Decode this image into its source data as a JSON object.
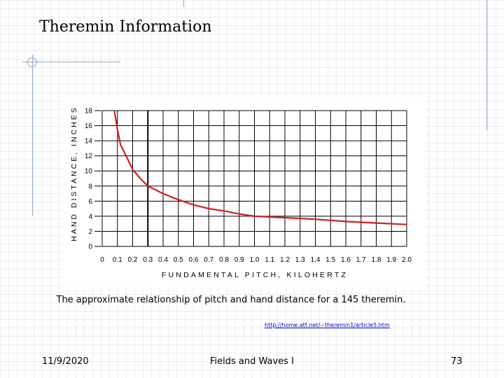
{
  "slide": {
    "title": "Theremin Information",
    "caption": "The approximate relationship of pitch and hand distance for a 145 theremin.",
    "source_link": "http://home.att.net/~theremin1/article5.htm",
    "footer": {
      "date": "11/9/2020",
      "center": "Fields and Waves I",
      "page_number": "73"
    }
  },
  "colors": {
    "curve": "#cc2222",
    "grid": "#000000",
    "decoration": "#8fa8c8",
    "link": "#0000cc"
  },
  "chart_data": {
    "type": "line",
    "title": "",
    "xlabel": "FUNDAMENTAL PITCH, KILOHERTZ",
    "ylabel": "HAND DISTANCE, INCHES",
    "xlim": [
      0,
      2.0
    ],
    "ylim": [
      0,
      18
    ],
    "x_ticks": [
      "0",
      "0.1",
      "0.2",
      "0.3",
      "0.4",
      "0.5",
      "0.6",
      "0.7",
      "0.8",
      "0.9",
      "1.0",
      "1.1",
      "1.2",
      "1.3",
      "1.4",
      "1.5",
      "1.6",
      "1.7",
      "1.8",
      "1.9",
      "2.0"
    ],
    "y_ticks": [
      "0",
      "2",
      "4",
      "6",
      "8",
      "10",
      "12",
      "14",
      "16",
      "18"
    ],
    "grid": true,
    "series": [
      {
        "x": [
          0.08,
          0.1,
          0.12,
          0.15,
          0.2,
          0.25,
          0.3,
          0.4,
          0.5,
          0.6,
          0.7,
          0.8,
          0.9,
          1.0,
          1.2,
          1.4,
          1.6,
          1.8,
          2.0
        ],
        "values": [
          18.0,
          15.5,
          13.5,
          12.3,
          10.2,
          9.0,
          8.0,
          7.0,
          6.2,
          5.5,
          5.0,
          4.7,
          4.3,
          4.0,
          3.8,
          3.6,
          3.3,
          3.1,
          2.9
        ]
      }
    ]
  }
}
